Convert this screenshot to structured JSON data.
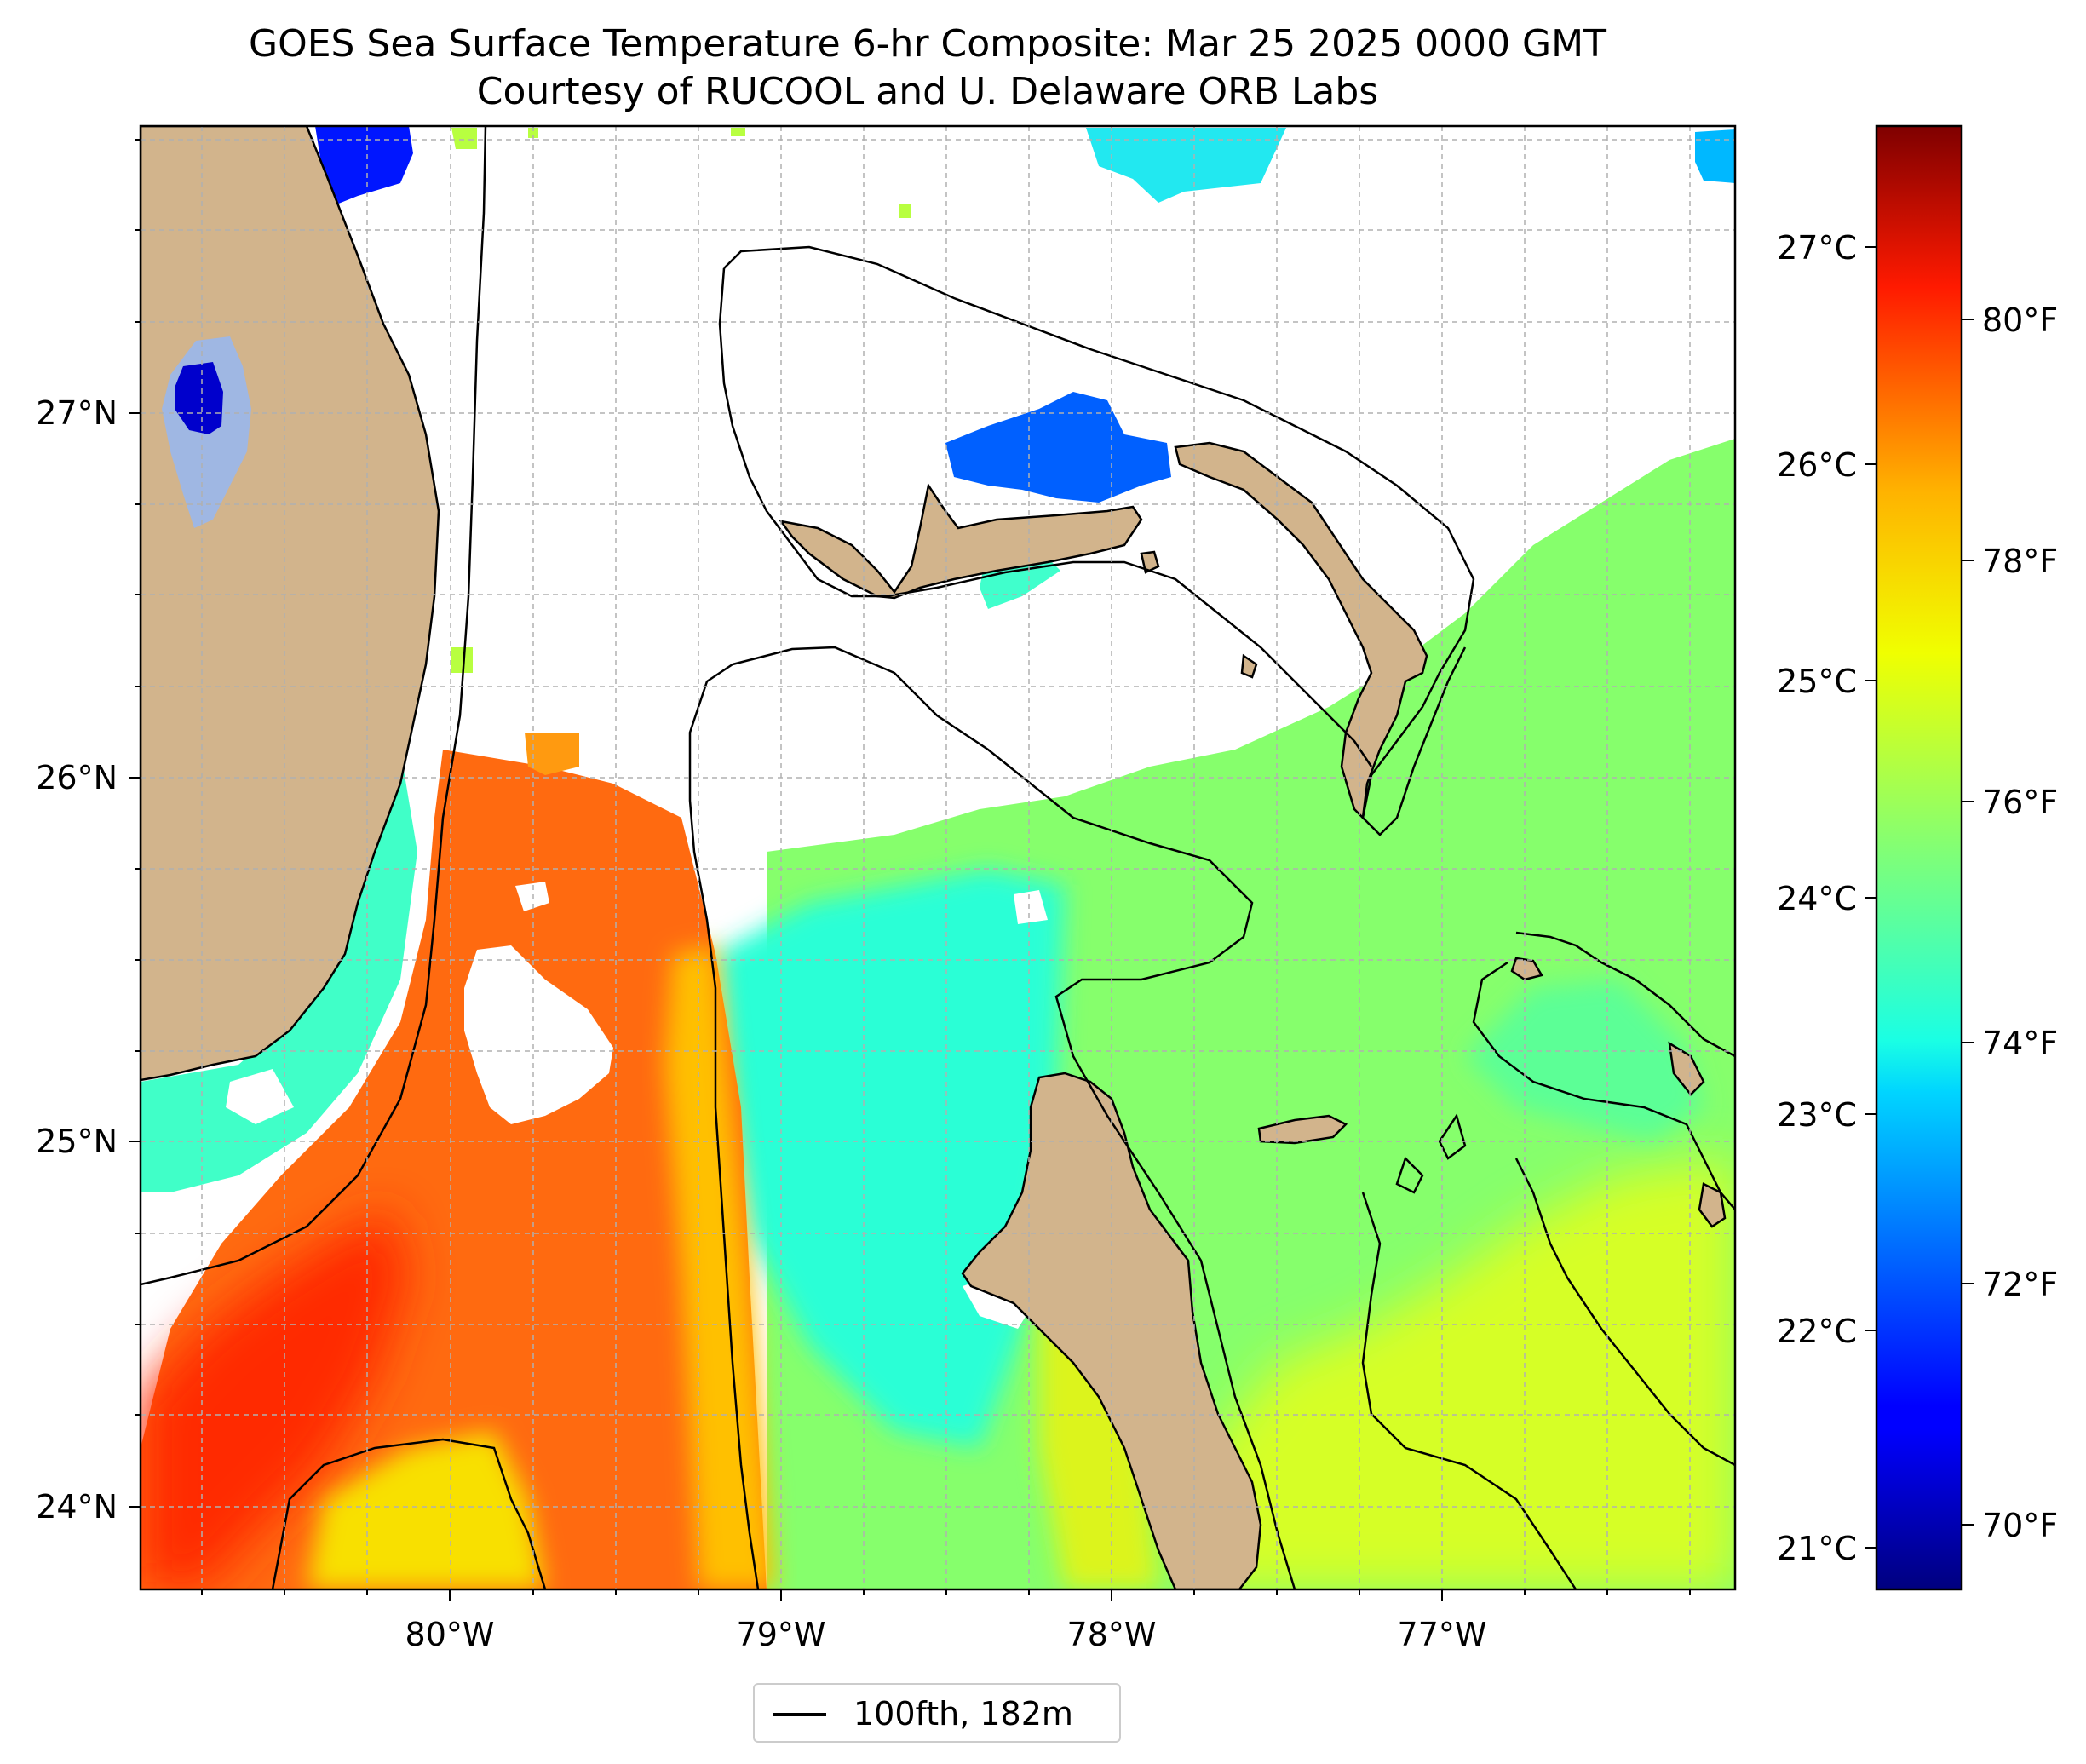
{
  "title": {
    "line1": "GOES Sea Surface Temperature 6-hr Composite: Mar 25 2025 0000 GMT",
    "line2": "Courtesy of RUCOOL and U. Delaware ORB Labs"
  },
  "axes": {
    "lon_ticks": [
      "80°W",
      "79°W",
      "78°W",
      "77°W"
    ],
    "lat_ticks": [
      "27°N",
      "26°N",
      "25°N",
      "24°N"
    ],
    "lon_range": [
      -80.95,
      -76.1
    ],
    "lat_range": [
      23.75,
      27.78
    ],
    "grid": true
  },
  "colorbar": {
    "colormap": "jet",
    "celsius_ticks": [
      "27°C",
      "26°C",
      "25°C",
      "24°C",
      "23°C",
      "22°C",
      "21°C"
    ],
    "fahrenheit_ticks": [
      "80°F",
      "78°F",
      "76°F",
      "74°F",
      "72°F",
      "70°F"
    ],
    "celsius_range": [
      20.8,
      27.55
    ]
  },
  "legend": {
    "label": "100fth, 182m"
  },
  "colors": {
    "land": "#d2b48c",
    "lake": "#9fb7e3",
    "no_data": "#ffffff",
    "isobath": "#000000",
    "gulf_stream": "#ff5a10",
    "bahamas_bank": "#d4f020"
  }
}
